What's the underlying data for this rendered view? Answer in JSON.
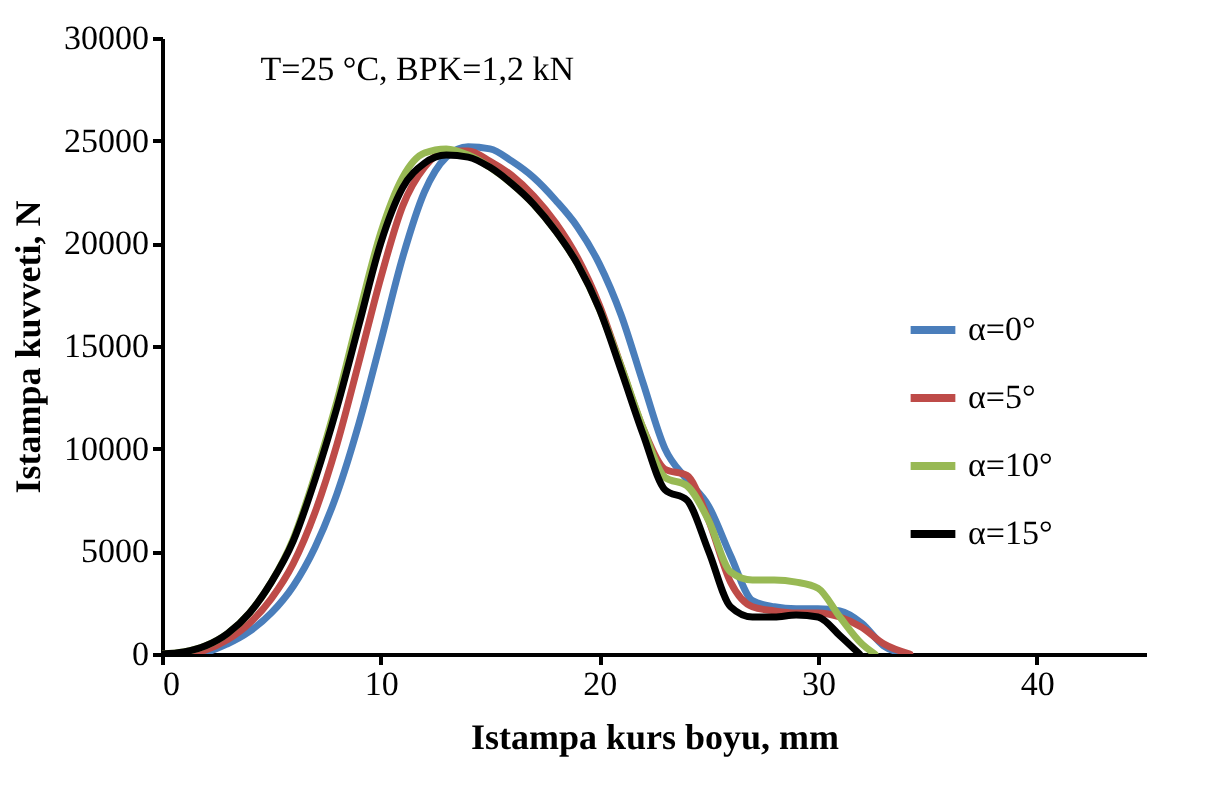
{
  "chart_data": {
    "type": "line",
    "xlabel": "Istampa kurs boyu, mm",
    "ylabel": "Istampa kuvveti, N",
    "annotations": [
      "T=25 °C, BPK=1,2 kN"
    ],
    "xlim": [
      0,
      45
    ],
    "xticks": [
      0,
      10,
      20,
      30,
      40
    ],
    "ylim": [
      0,
      30000
    ],
    "yticks": [
      0,
      5000,
      10000,
      15000,
      20000,
      25000,
      30000
    ],
    "grid": false,
    "legend": "right",
    "marker": "none",
    "line_style": "solid",
    "series": [
      {
        "name": "α=0°",
        "color": "#4a7ebb",
        "x": [
          0,
          1.5,
          3,
          4,
          5,
          6,
          7,
          8,
          9,
          10,
          11,
          12,
          13,
          14,
          15,
          16,
          17,
          18,
          19,
          20,
          21,
          22,
          23,
          24,
          25,
          26,
          27,
          28,
          29,
          30,
          31,
          32,
          33,
          34
        ],
        "values": [
          0,
          0,
          500,
          1100,
          2000,
          3300,
          5200,
          7800,
          11200,
          15200,
          19300,
          22500,
          24200,
          24700,
          24600,
          24000,
          23200,
          22100,
          20800,
          19000,
          16500,
          13200,
          10000,
          8500,
          7200,
          4800,
          2600,
          2300,
          2200,
          2200,
          2100,
          1500,
          400,
          0
        ]
      },
      {
        "name": "α=5°",
        "color": "#be4b48",
        "x": [
          0,
          1,
          2,
          3,
          4,
          5,
          6,
          7,
          8,
          9,
          10,
          11,
          12,
          13,
          14,
          15,
          16,
          17,
          18,
          19,
          20,
          21,
          22,
          23,
          24,
          25,
          26,
          27,
          28,
          29,
          30,
          31,
          32,
          33,
          34.2
        ],
        "values": [
          0,
          0,
          200,
          700,
          1500,
          2700,
          4400,
          6900,
          10200,
          14200,
          18300,
          21800,
          23700,
          24500,
          24500,
          24000,
          23300,
          22300,
          21000,
          19300,
          17000,
          14000,
          11000,
          9000,
          8700,
          6500,
          3500,
          2300,
          2100,
          2000,
          2000,
          1800,
          1300,
          500,
          0
        ]
      },
      {
        "name": "α=10°",
        "color": "#98b954",
        "x": [
          0,
          1,
          2,
          3,
          4,
          5,
          6,
          7,
          8,
          9,
          10,
          11,
          12,
          13,
          14,
          15,
          16,
          17,
          18,
          19,
          20,
          21,
          22,
          23,
          24,
          25,
          26,
          27,
          28,
          29,
          30,
          31,
          32,
          32.6
        ],
        "values": [
          0,
          100,
          400,
          1000,
          2000,
          3500,
          5600,
          8700,
          12300,
          16500,
          20500,
          23200,
          24400,
          24600,
          24300,
          23700,
          22900,
          21900,
          20600,
          19000,
          16800,
          14000,
          11000,
          8600,
          8200,
          6500,
          4000,
          3600,
          3600,
          3500,
          3200,
          1800,
          500,
          0
        ]
      },
      {
        "name": "α=15°",
        "color": "#000000",
        "x": [
          0,
          1,
          2,
          3,
          4,
          5,
          6,
          7,
          8,
          9,
          10,
          11,
          12,
          13,
          14,
          15,
          16,
          17,
          18,
          19,
          20,
          21,
          22,
          23,
          24,
          25,
          26,
          27,
          28,
          29,
          30,
          31,
          31.9
        ],
        "values": [
          0,
          100,
          400,
          1000,
          2000,
          3500,
          5500,
          8500,
          12000,
          16000,
          20000,
          22700,
          23900,
          24300,
          24200,
          23700,
          22900,
          21900,
          20600,
          19000,
          16800,
          13800,
          10700,
          8000,
          7500,
          5000,
          2300,
          1800,
          1800,
          1900,
          1800,
          900,
          0
        ]
      }
    ]
  }
}
